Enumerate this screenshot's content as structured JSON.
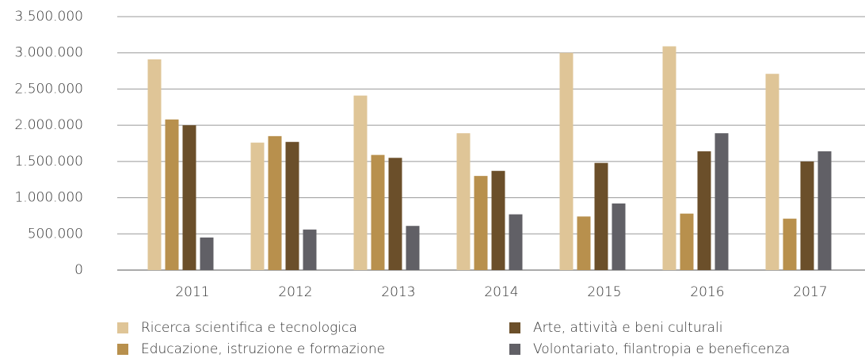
{
  "chart_data": {
    "type": "bar",
    "categories": [
      "2011",
      "2012",
      "2013",
      "2014",
      "2015",
      "2016",
      "2017"
    ],
    "series": [
      {
        "name": "Ricerca scientifica e tecnologica",
        "color": "#dfc597",
        "values": [
          2910000,
          1760000,
          2410000,
          1890000,
          3000000,
          3090000,
          2710000
        ]
      },
      {
        "name": "Educazione, istruzione e formazione",
        "color": "#b8904d",
        "values": [
          2080000,
          1850000,
          1590000,
          1300000,
          740000,
          780000,
          710000
        ]
      },
      {
        "name": "Arte, attività e beni culturali",
        "color": "#6b4f2a",
        "values": [
          2000000,
          1770000,
          1550000,
          1370000,
          1480000,
          1640000,
          1500000
        ]
      },
      {
        "name": "Volontariato, filantropia e beneficenza",
        "color": "#616066",
        "values": [
          450000,
          560000,
          610000,
          770000,
          920000,
          1890000,
          1640000
        ]
      }
    ],
    "ylim": [
      0,
      3500000
    ],
    "yticks": [
      0,
      {
        "value": 500000,
        "label": "500.000"
      },
      {
        "value": 1000000,
        "label": "1.000.000"
      },
      {
        "value": 1500000,
        "label": "1.500.000"
      },
      {
        "value": 2000000,
        "label": "2.000.000"
      },
      {
        "value": 2500000,
        "label": "2.500.000"
      },
      {
        "value": 3000000,
        "label": "3.000.000"
      },
      {
        "value": 3500000,
        "label": "3.500.000"
      }
    ],
    "grid": true
  }
}
